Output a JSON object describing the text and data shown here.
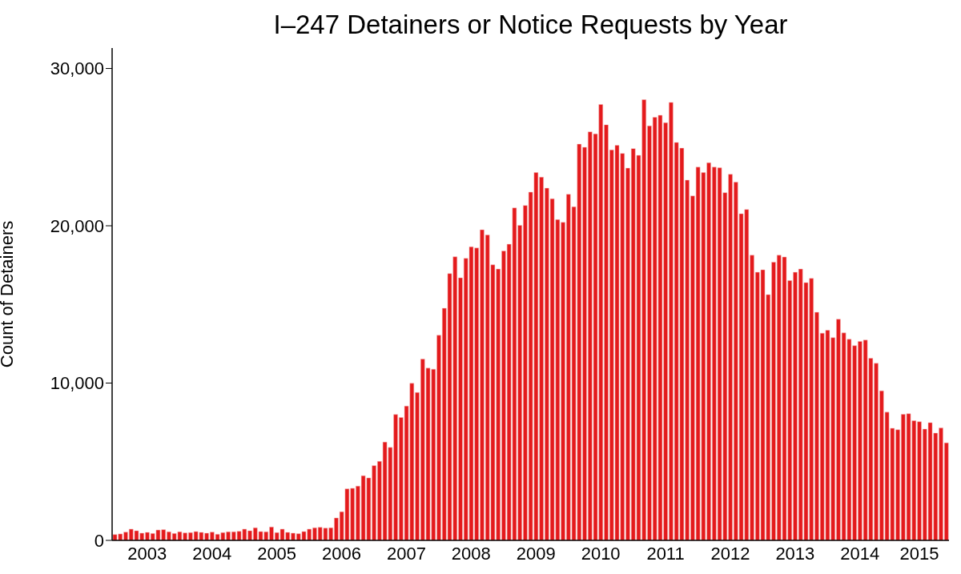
{
  "chart_data": {
    "type": "bar",
    "title": "I–247 Detainers or Notice Requests by Year",
    "ylabel": "Count of Detainers",
    "color": "#e41a1c",
    "grid": false,
    "legend": false,
    "categories": [
      null,
      null,
      null,
      null,
      null,
      null,
      "2003",
      null,
      null,
      null,
      null,
      null,
      null,
      null,
      null,
      null,
      null,
      null,
      "2004",
      null,
      null,
      null,
      null,
      null,
      null,
      null,
      null,
      null,
      null,
      null,
      "2005",
      null,
      null,
      null,
      null,
      null,
      null,
      null,
      null,
      null,
      null,
      null,
      "2006",
      null,
      null,
      null,
      null,
      null,
      null,
      null,
      null,
      null,
      null,
      null,
      "2007",
      null,
      null,
      null,
      null,
      null,
      null,
      null,
      null,
      null,
      null,
      null,
      "2008",
      null,
      null,
      null,
      null,
      null,
      null,
      null,
      null,
      null,
      null,
      null,
      "2009",
      null,
      null,
      null,
      null,
      null,
      null,
      null,
      null,
      null,
      null,
      null,
      "2010",
      null,
      null,
      null,
      null,
      null,
      null,
      null,
      null,
      null,
      null,
      null,
      "2011",
      null,
      null,
      null,
      null,
      null,
      null,
      null,
      null,
      null,
      null,
      null,
      "2012",
      null,
      null,
      null,
      null,
      null,
      null,
      null,
      null,
      null,
      null,
      null,
      "2013",
      null,
      null,
      null,
      null,
      null,
      null,
      null,
      null,
      null,
      null,
      null,
      "2014",
      null,
      null,
      null,
      null,
      null,
      null,
      null,
      null,
      null,
      null,
      "2015",
      null,
      null,
      null,
      null,
      null
    ],
    "values": [
      370,
      410,
      525,
      715,
      610,
      460,
      510,
      440,
      660,
      680,
      545,
      440,
      545,
      475,
      495,
      560,
      510,
      460,
      525,
      390,
      495,
      545,
      545,
      575,
      715,
      610,
      800,
      560,
      545,
      850,
      495,
      715,
      510,
      460,
      425,
      560,
      715,
      800,
      830,
      780,
      800,
      1425,
      1820,
      3275,
      3310,
      3450,
      4110,
      3970,
      4750,
      5025,
      6250,
      5910,
      8000,
      7810,
      8540,
      9985,
      9405,
      11525,
      10950,
      10885,
      13040,
      14755,
      16960,
      18030,
      16690,
      17930,
      18660,
      18590,
      19745,
      19420,
      17520,
      17250,
      18400,
      18830,
      21140,
      20030,
      21290,
      22140,
      23380,
      23090,
      22395,
      21715,
      20390,
      20220,
      22005,
      21205,
      25195,
      24995,
      25975,
      25840,
      27710,
      26420,
      24820,
      25110,
      24600,
      23670,
      24905,
      24480,
      28015,
      26350,
      26895,
      27030,
      26550,
      27845,
      25300,
      24940,
      22905,
      21900,
      23735,
      23380,
      24005,
      23735,
      23685,
      22105,
      23275,
      22770,
      20765,
      21035,
      18130,
      17045,
      17200,
      15620,
      17690,
      18130,
      18015,
      16520,
      17045,
      17250,
      16385,
      16655,
      14500,
      13175,
      13360,
      12885,
      14060,
      13190,
      12785,
      12375,
      12650,
      12735,
      11580,
      11255,
      9510,
      8150,
      7130,
      7030,
      8010,
      8050,
      7605,
      7540,
      7080,
      7485,
      6825,
      7145,
      6200
    ],
    "ylim": [
      0,
      31300
    ],
    "yticks": [
      0,
      {
        "value": 10000,
        "label": "10,000"
      },
      {
        "value": 20000,
        "label": "20,000"
      },
      {
        "value": 30000,
        "label": "30,000"
      }
    ]
  }
}
